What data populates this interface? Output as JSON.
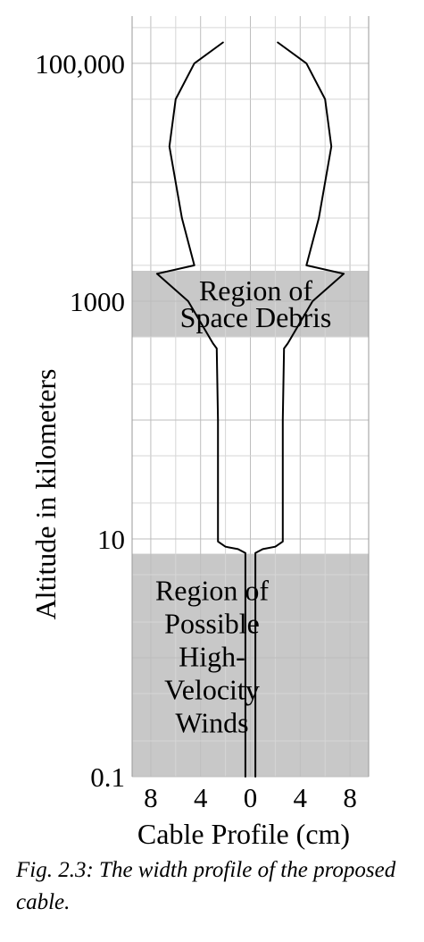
{
  "chart_data": {
    "type": "line",
    "title": "",
    "xlabel": "Cable Profile (cm)",
    "ylabel": "Altitude in kilometers",
    "y_scale": "log",
    "ylim": [
      0.1,
      250000
    ],
    "xlim": [
      -9.5,
      9.5
    ],
    "y_ticks": [
      {
        "value": 0.1,
        "label": "0.1"
      },
      {
        "value": 10,
        "label": "10"
      },
      {
        "value": 1000,
        "label": "1000"
      },
      {
        "value": 100000,
        "label": "100,000"
      }
    ],
    "x_ticks": [
      {
        "value": -8,
        "label": "8"
      },
      {
        "value": -4,
        "label": "4"
      },
      {
        "value": 0,
        "label": "0"
      },
      {
        "value": 4,
        "label": "4"
      },
      {
        "value": 8,
        "label": "8"
      }
    ],
    "grid": true,
    "regions": [
      {
        "label_lines": [
          "Region of",
          "Space Debris"
        ],
        "y_range": [
          500,
          1800
        ],
        "x_range": [
          -9.5,
          9.5
        ]
      },
      {
        "label_lines": [
          "Region of",
          "Possible",
          "High-",
          "Velocity",
          "Winds"
        ],
        "y_range": [
          0.1,
          7.5
        ],
        "x_range": [
          -9.5,
          9.5
        ]
      }
    ],
    "series": [
      {
        "side": "right",
        "points": [
          {
            "y": 0.1,
            "x": 0.4
          },
          {
            "y": 7.6,
            "x": 0.4
          },
          {
            "y": 8.2,
            "x": 1.0
          },
          {
            "y": 8.6,
            "x": 2.0
          },
          {
            "y": 9.5,
            "x": 2.6
          },
          {
            "y": 15,
            "x": 2.6
          },
          {
            "y": 100,
            "x": 2.6
          },
          {
            "y": 400,
            "x": 2.7
          },
          {
            "y": 440,
            "x": 3.0
          },
          {
            "y": 1000,
            "x": 5.0
          },
          {
            "y": 1700,
            "x": 7.5
          },
          {
            "y": 2000,
            "x": 4.5
          },
          {
            "y": 5000,
            "x": 5.5
          },
          {
            "y": 20000,
            "x": 6.5
          },
          {
            "y": 50000,
            "x": 6.0
          },
          {
            "y": 100000,
            "x": 4.5
          },
          {
            "y": 150000,
            "x": 2.2
          }
        ]
      },
      {
        "side": "left",
        "points": [
          {
            "y": 0.1,
            "x": -0.4
          },
          {
            "y": 7.6,
            "x": -0.4
          },
          {
            "y": 8.2,
            "x": -1.0
          },
          {
            "y": 8.6,
            "x": -2.0
          },
          {
            "y": 9.5,
            "x": -2.6
          },
          {
            "y": 15,
            "x": -2.6
          },
          {
            "y": 100,
            "x": -2.6
          },
          {
            "y": 400,
            "x": -2.7
          },
          {
            "y": 440,
            "x": -3.0
          },
          {
            "y": 1000,
            "x": -5.0
          },
          {
            "y": 1700,
            "x": -7.5
          },
          {
            "y": 2000,
            "x": -4.5
          },
          {
            "y": 5000,
            "x": -5.5
          },
          {
            "y": 20000,
            "x": -6.5
          },
          {
            "y": 50000,
            "x": -6.0
          },
          {
            "y": 100000,
            "x": -4.5
          },
          {
            "y": 150000,
            "x": -2.2
          }
        ]
      }
    ]
  },
  "caption": "Fig. 2.3: The width profile of the proposed cable."
}
